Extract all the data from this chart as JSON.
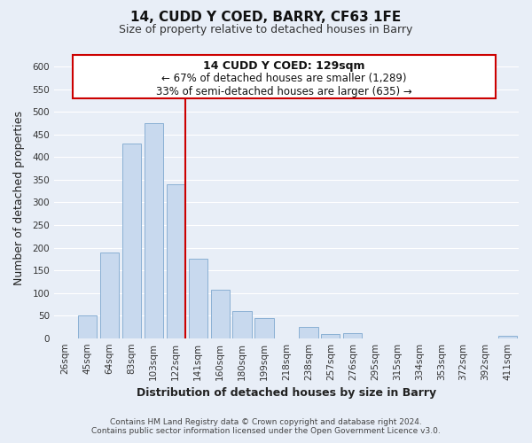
{
  "title": "14, CUDD Y COED, BARRY, CF63 1FE",
  "subtitle": "Size of property relative to detached houses in Barry",
  "xlabel": "Distribution of detached houses by size in Barry",
  "ylabel": "Number of detached properties",
  "bar_color": "#c8d9ee",
  "bar_edge_color": "#8ab0d4",
  "categories": [
    "26sqm",
    "45sqm",
    "64sqm",
    "83sqm",
    "103sqm",
    "122sqm",
    "141sqm",
    "160sqm",
    "180sqm",
    "199sqm",
    "218sqm",
    "238sqm",
    "257sqm",
    "276sqm",
    "295sqm",
    "315sqm",
    "334sqm",
    "353sqm",
    "372sqm",
    "392sqm",
    "411sqm"
  ],
  "values": [
    0,
    50,
    190,
    430,
    475,
    340,
    175,
    108,
    60,
    45,
    0,
    25,
    10,
    12,
    0,
    0,
    0,
    0,
    0,
    0,
    5
  ],
  "red_line_index": 5,
  "annotation_title": "14 CUDD Y COED: 129sqm",
  "annotation_line1": "← 67% of detached houses are smaller (1,289)",
  "annotation_line2": "33% of semi-detached houses are larger (635) →",
  "ylim": [
    0,
    620
  ],
  "yticks": [
    0,
    50,
    100,
    150,
    200,
    250,
    300,
    350,
    400,
    450,
    500,
    550,
    600
  ],
  "footer1": "Contains HM Land Registry data © Crown copyright and database right 2024.",
  "footer2": "Contains public sector information licensed under the Open Government Licence v3.0.",
  "background_color": "#e8eef7",
  "plot_bg_color": "#e8eef7",
  "grid_color": "#ffffff",
  "annotation_box_color": "#ffffff",
  "annotation_box_edge": "#cc0000",
  "red_line_color": "#cc0000",
  "title_fontsize": 11,
  "subtitle_fontsize": 9,
  "axis_label_fontsize": 9,
  "tick_fontsize": 7.5,
  "annotation_title_fontsize": 9,
  "annotation_line_fontsize": 8.5,
  "footer_fontsize": 6.5
}
